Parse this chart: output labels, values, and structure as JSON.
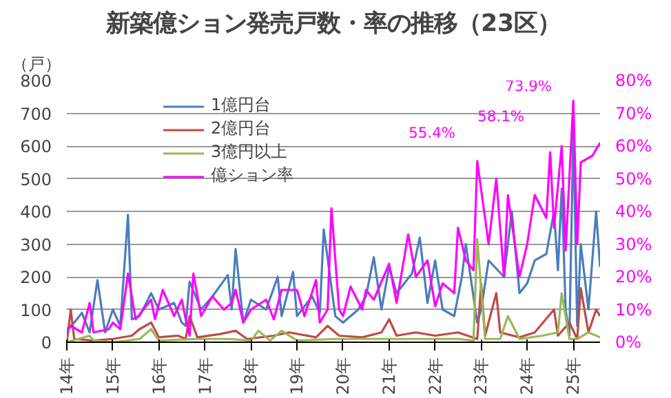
{
  "chart_data": {
    "type": "line",
    "title": "新築億ション発売戸数・率の推移（23区）",
    "ylabel": "（戸）",
    "xlim": [
      "2014-01",
      "2025-08"
    ],
    "xticks": [
      {
        "value": "2014-01",
        "label": "14年"
      },
      {
        "value": "2015-01",
        "label": "15年"
      },
      {
        "value": "2016-01",
        "label": "16年"
      },
      {
        "value": "2017-01",
        "label": "17年"
      },
      {
        "value": "2018-01",
        "label": "18年"
      },
      {
        "value": "2019-01",
        "label": "19年"
      },
      {
        "value": "2020-01",
        "label": "20年"
      },
      {
        "value": "2021-01",
        "label": "21年"
      },
      {
        "value": "2022-01",
        "label": "22年"
      },
      {
        "value": "2023-01",
        "label": "23年"
      },
      {
        "value": "2024-01",
        "label": "24年"
      },
      {
        "value": "2025-01",
        "label": "25年"
      }
    ],
    "ylim": [
      0,
      800
    ],
    "yticks": [
      0,
      100,
      200,
      300,
      400,
      500,
      600,
      700,
      800
    ],
    "y2lim": [
      0,
      80
    ],
    "y2ticks": [
      {
        "value": 0,
        "label": "0%"
      },
      {
        "value": 10,
        "label": "10%"
      },
      {
        "value": 20,
        "label": "20%"
      },
      {
        "value": 30,
        "label": "30%"
      },
      {
        "value": 40,
        "label": "40%"
      },
      {
        "value": 50,
        "label": "50%"
      },
      {
        "value": 60,
        "label": "60%"
      },
      {
        "value": 70,
        "label": "70%"
      },
      {
        "value": 80,
        "label": "80%"
      }
    ],
    "grid": "y",
    "legend": "top left",
    "marker": "none",
    "line_style": "solid",
    "series": [
      {
        "name": "1億円台",
        "color": "#4a7ebb",
        "x": [
          "2014-01",
          "2014-03",
          "2014-05",
          "2014-07",
          "2014-09",
          "2014-11",
          "2015-01",
          "2015-03",
          "2015-05",
          "2015-06",
          "2015-08",
          "2015-11",
          "2016-01",
          "2016-05",
          "2016-07",
          "2016-08",
          "2016-09",
          "2016-12",
          "2017-03",
          "2017-07",
          "2017-08",
          "2017-09",
          "2017-11",
          "2018-01",
          "2018-05",
          "2018-08",
          "2018-09",
          "2018-12",
          "2019-01",
          "2019-05",
          "2019-07",
          "2019-08",
          "2019-11",
          "2020-01",
          "2020-05",
          "2020-07",
          "2020-09",
          "2020-11",
          "2021-01",
          "2021-03",
          "2021-07",
          "2021-09",
          "2021-11",
          "2022-01",
          "2022-03",
          "2022-06",
          "2022-08",
          "2022-09",
          "2022-12",
          "2023-01",
          "2023-03",
          "2023-07",
          "2023-09",
          "2023-11",
          "2024-01",
          "2024-03",
          "2024-06",
          "2024-08",
          "2024-09",
          "2024-10",
          "2024-11",
          "2024-12",
          "2025-01",
          "2025-02",
          "2025-03",
          "2025-05",
          "2025-07",
          "2025-08"
        ],
        "values": [
          40,
          60,
          90,
          30,
          190,
          30,
          100,
          50,
          390,
          70,
          80,
          150,
          100,
          120,
          60,
          50,
          185,
          100,
          140,
          205,
          100,
          285,
          60,
          130,
          100,
          200,
          80,
          215,
          80,
          140,
          90,
          345,
          80,
          60,
          100,
          140,
          260,
          100,
          230,
          150,
          210,
          320,
          120,
          250,
          100,
          80,
          200,
          300,
          60,
          100,
          250,
          200,
          400,
          150,
          180,
          250,
          270,
          400,
          220,
          470,
          100,
          20,
          650,
          50,
          300,
          100,
          400,
          230
        ]
      },
      {
        "name": "2億円台",
        "color": "#be4b48",
        "x": [
          "2014-01",
          "2014-02",
          "2014-03",
          "2014-08",
          "2015-01",
          "2015-06",
          "2015-08",
          "2015-11",
          "2016-01",
          "2016-06",
          "2016-08",
          "2016-09",
          "2016-11",
          "2017-05",
          "2017-09",
          "2017-12",
          "2018-07",
          "2018-11",
          "2019-06",
          "2019-09",
          "2019-12",
          "2020-06",
          "2020-11",
          "2021-01",
          "2021-03",
          "2021-08",
          "2022-01",
          "2022-07",
          "2022-12",
          "2023-01",
          "2023-02",
          "2023-05",
          "2023-06",
          "2023-11",
          "2024-03",
          "2024-08",
          "2024-09",
          "2024-12",
          "2025-02",
          "2025-03",
          "2025-05",
          "2025-07",
          "2025-08"
        ],
        "values": [
          0,
          100,
          10,
          5,
          10,
          20,
          40,
          60,
          15,
          20,
          10,
          80,
          15,
          25,
          35,
          10,
          20,
          30,
          15,
          50,
          20,
          15,
          30,
          70,
          20,
          30,
          20,
          30,
          10,
          180,
          20,
          150,
          30,
          15,
          30,
          100,
          20,
          60,
          10,
          165,
          30,
          100,
          80
        ]
      },
      {
        "name": "3億円以上",
        "color": "#98b954",
        "x": [
          "2014-01",
          "2014-07",
          "2014-08",
          "2015-01",
          "2015-08",
          "2015-11",
          "2016-01",
          "2016-11",
          "2017-07",
          "2018-01",
          "2018-03",
          "2018-06",
          "2018-09",
          "2019-01",
          "2019-11",
          "2020-07",
          "2021-07",
          "2022-07",
          "2022-11",
          "2022-12",
          "2023-02",
          "2023-06",
          "2023-08",
          "2023-11",
          "2024-05",
          "2024-09",
          "2024-10",
          "2024-12",
          "2025-02",
          "2025-05",
          "2025-08"
        ],
        "values": [
          0,
          20,
          5,
          0,
          10,
          40,
          5,
          10,
          10,
          5,
          35,
          5,
          35,
          5,
          10,
          10,
          10,
          10,
          5,
          315,
          10,
          10,
          80,
          10,
          20,
          30,
          150,
          10,
          10,
          30,
          15
        ]
      },
      {
        "name": "億ション率",
        "color": "#ff00ff",
        "axis": "y2",
        "x": [
          "2014-01",
          "2014-02",
          "2014-05",
          "2014-07",
          "2014-08",
          "2014-12",
          "2015-01",
          "2015-03",
          "2015-05",
          "2015-07",
          "2015-11",
          "2015-12",
          "2016-02",
          "2016-05",
          "2016-07",
          "2016-08",
          "2016-09",
          "2016-10",
          "2016-12",
          "2017-03",
          "2017-06",
          "2017-08",
          "2017-09",
          "2017-11",
          "2018-01",
          "2018-05",
          "2018-07",
          "2018-09",
          "2019-01",
          "2019-03",
          "2019-06",
          "2019-07",
          "2019-09",
          "2019-10",
          "2019-12",
          "2020-01",
          "2020-03",
          "2020-06",
          "2020-07",
          "2020-09",
          "2021-01",
          "2021-03",
          "2021-06",
          "2021-08",
          "2021-11",
          "2022-01",
          "2022-03",
          "2022-06",
          "2022-07",
          "2022-09",
          "2022-11",
          "2022-12",
          "2023-03",
          "2023-05",
          "2023-07",
          "2023-08",
          "2023-11",
          "2024-01",
          "2024-03",
          "2024-06",
          "2024-07",
          "2024-08",
          "2024-10",
          "2024-11",
          "2025-01",
          "2025-02",
          "2025-03",
          "2025-06",
          "2025-08"
        ],
        "values": [
          3,
          5,
          3,
          12,
          3,
          4,
          6,
          4,
          21,
          7,
          13,
          7,
          16,
          8,
          13,
          7,
          2,
          21,
          8,
          14,
          10,
          12,
          16,
          6,
          10,
          13,
          7,
          16,
          16,
          8,
          19,
          6,
          10,
          41,
          10,
          8,
          17,
          10,
          16,
          13,
          24,
          12,
          33,
          20,
          25,
          11,
          18,
          15,
          35,
          25,
          22,
          55.4,
          30,
          50,
          20,
          45,
          20,
          30,
          45,
          38,
          58.1,
          35,
          60,
          28,
          73.9,
          30,
          55,
          57,
          61
        ]
      }
    ],
    "annotations": [
      "55.4%",
      "58.1%",
      "73.9%"
    ]
  }
}
